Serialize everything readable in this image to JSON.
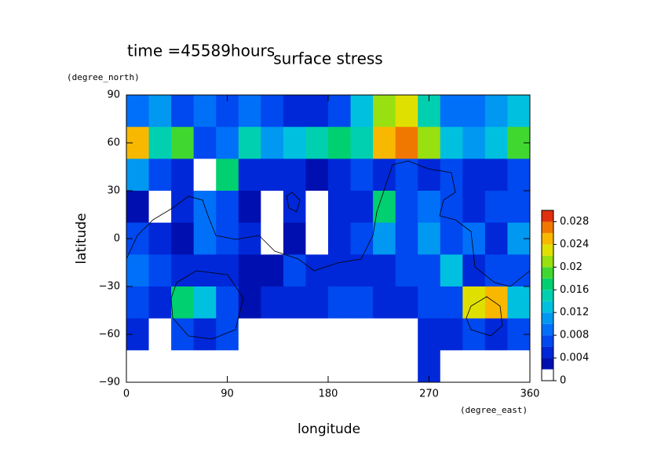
{
  "chart_data": {
    "type": "contour",
    "title": "surface stress",
    "subtitle": "time =45589hours",
    "y_units": "(degree_north)",
    "x_units": "(degree_east)",
    "y_label": "latitude",
    "x_label": "longitude",
    "xlim": [
      0,
      360
    ],
    "ylim": [
      -90,
      90
    ],
    "xticks": [
      0,
      90,
      180,
      270,
      360
    ],
    "yticks": [
      {
        "value": -90,
        "label": "−90"
      },
      {
        "value": -60,
        "label": "−60"
      },
      {
        "value": -30,
        "label": "−30"
      },
      0,
      30,
      60,
      90
    ],
    "x": [
      10,
      30,
      50,
      70,
      90,
      110,
      130,
      150,
      170,
      190,
      210,
      230,
      250,
      270,
      290,
      310,
      330,
      350
    ],
    "y": [
      80,
      60,
      40,
      20,
      0,
      -20,
      -40,
      -60,
      -80
    ],
    "z": [
      [
        0.008,
        0.01,
        0.006,
        0.008,
        0.006,
        0.008,
        0.006,
        0.004,
        0.004,
        0.006,
        0.012,
        0.02,
        0.022,
        0.014,
        0.008,
        0.008,
        0.01,
        0.012
      ],
      [
        0.024,
        0.014,
        0.018,
        0.006,
        0.008,
        0.014,
        0.01,
        0.012,
        0.014,
        0.016,
        0.014,
        0.024,
        0.026,
        0.02,
        0.012,
        0.01,
        0.012,
        0.018
      ],
      [
        0.01,
        0.006,
        0.004,
        0,
        0.016,
        0.004,
        0.004,
        0.004,
        0.002,
        0.004,
        0.006,
        0.004,
        0.006,
        0.004,
        0.006,
        0.004,
        0.004,
        0.006
      ],
      [
        0.002,
        0,
        0.004,
        0.008,
        0.006,
        0.002,
        0,
        0.004,
        0,
        0.004,
        0.004,
        0.016,
        0.006,
        0.008,
        0.006,
        0.004,
        0.006,
        0.006
      ],
      [
        0.006,
        0.004,
        0.002,
        0.008,
        0.006,
        0.004,
        0,
        0.002,
        0,
        0.004,
        0.006,
        0.01,
        0.006,
        0.01,
        0.006,
        0.008,
        0.004,
        0.01
      ],
      [
        0.008,
        0.006,
        0.004,
        0.004,
        0.004,
        0.002,
        0.002,
        0.006,
        0.004,
        0.004,
        0.004,
        0.004,
        0.006,
        0.006,
        0.012,
        0.004,
        0.006,
        0.006
      ],
      [
        0.006,
        0.004,
        0.016,
        0.012,
        0.006,
        0.002,
        0.004,
        0.004,
        0.004,
        0.006,
        0.006,
        0.004,
        0.004,
        0.006,
        0.006,
        0.022,
        0.024,
        0.012
      ],
      [
        0.004,
        0,
        0.006,
        0.004,
        0.006,
        0,
        0,
        0,
        0,
        0,
        0,
        0,
        0,
        0.004,
        0.004,
        0.006,
        0.004,
        0.006
      ],
      [
        0,
        0,
        0,
        0,
        0,
        0,
        0,
        0,
        0,
        0,
        0,
        0,
        0,
        0.004,
        0,
        0,
        0,
        0
      ]
    ],
    "levels": [
      0,
      0.002,
      0.004,
      0.006,
      0.008,
      0.01,
      0.012,
      0.014,
      0.016,
      0.018,
      0.02,
      0.022,
      0.024,
      0.026,
      0.028,
      0.03
    ],
    "colors": [
      "#ffffff",
      "#0010b0",
      "#0028d8",
      "#0048f0",
      "#0070f8",
      "#0098f0",
      "#00c0e0",
      "#00d0b0",
      "#00d070",
      "#40d830",
      "#98e010",
      "#e0e000",
      "#f8b800",
      "#f07800",
      "#e03010"
    ],
    "cbticks": [
      0,
      0.004,
      0.008,
      0.012,
      0.016,
      0.02,
      0.024,
      0.028
    ]
  }
}
